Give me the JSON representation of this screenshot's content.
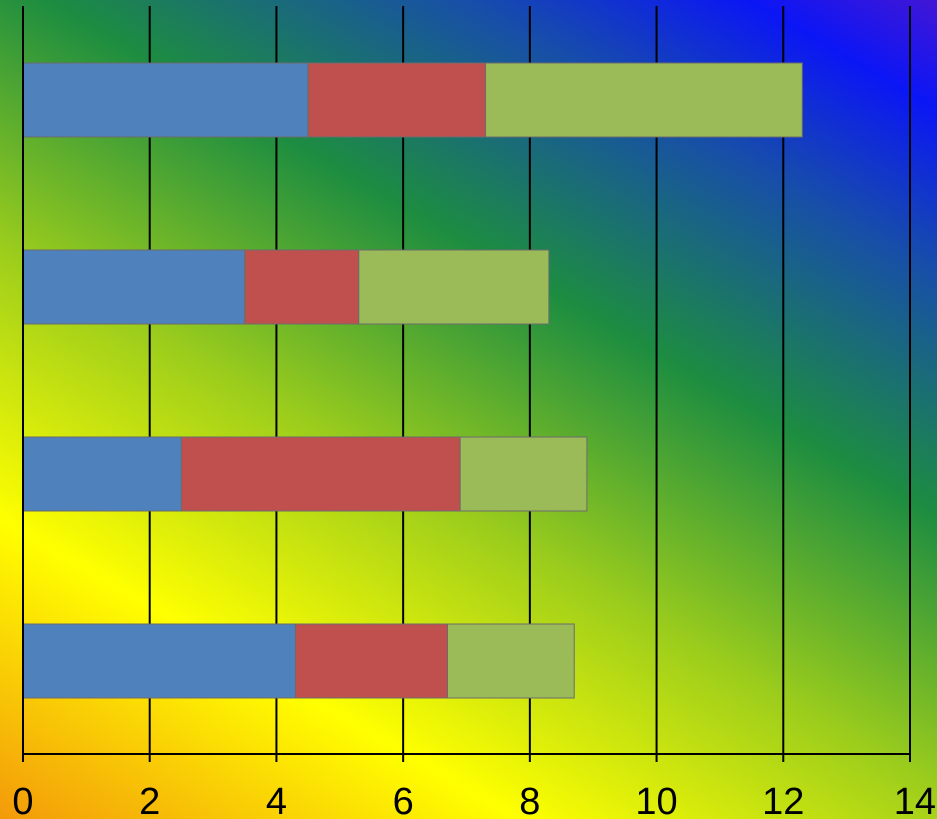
{
  "chart_data": {
    "type": "bar",
    "orientation": "horizontal",
    "stacked": true,
    "title": "",
    "xlabel": "",
    "ylabel": "",
    "xlim": [
      0,
      14
    ],
    "x_ticks": [
      "0",
      "2",
      "4",
      "6",
      "8",
      "10",
      "12",
      "14"
    ],
    "grid": true,
    "legend": "none",
    "category_order": "top-to-bottom",
    "series": [
      {
        "color": "#4f81bd",
        "values": [
          4.5,
          3.5,
          2.5,
          4.3
        ]
      },
      {
        "color": "#c0504d",
        "values": [
          2.8,
          1.8,
          4.4,
          2.4
        ]
      },
      {
        "color": "#9bbb59",
        "values": [
          5.0,
          3.0,
          2.0,
          2.0
        ]
      }
    ]
  }
}
